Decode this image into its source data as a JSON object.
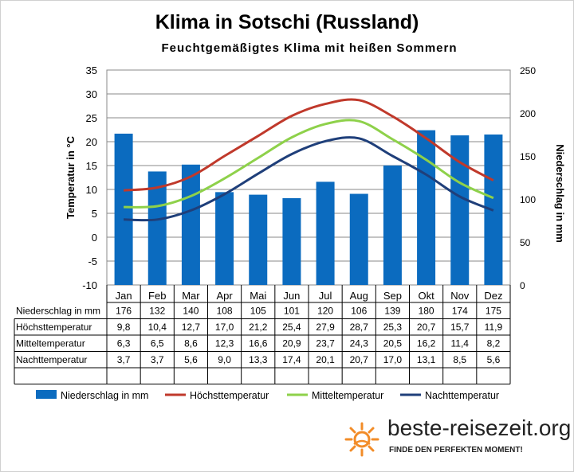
{
  "title": "Klima in Sotschi (Russland)",
  "subtitle": "Feuchtgemäßigtes Klima mit heißen Sommern",
  "colors": {
    "precip": "#0b6bbf",
    "max": "#c0392b",
    "mean": "#8ed14a",
    "min": "#1f3f7a"
  },
  "logo": {
    "name": "beste-reisezeit.org",
    "tagline": "FINDE DEN PERFEKTEN MOMENT!",
    "icon": "sun-icon"
  },
  "chart_data": {
    "type": "bar",
    "categories": [
      "Jan",
      "Feb",
      "Mar",
      "Apr",
      "Mai",
      "Jun",
      "Jul",
      "Aug",
      "Sep",
      "Okt",
      "Nov",
      "Dez"
    ],
    "ylabel_left": "Temperatur in °C",
    "ylabel_right": "Niederschlag in mm",
    "ylim_left": [
      -10,
      35
    ],
    "yticks_left": [
      "35",
      "30",
      "25",
      "20",
      "15",
      "10",
      "5",
      "0",
      "-5",
      "-10"
    ],
    "ylim_right": [
      0,
      250
    ],
    "yticks_right": [
      "250",
      "200",
      "150",
      "100",
      "50",
      "0"
    ],
    "grid": true,
    "legend_position": "bottom",
    "series": [
      {
        "name": "Niederschlag in mm",
        "type": "bar",
        "axis": "right",
        "values": [
          176,
          132,
          140,
          108,
          105,
          101,
          120,
          106,
          139,
          180,
          174,
          175
        ],
        "labels": [
          "176",
          "132",
          "140",
          "108",
          "105",
          "101",
          "120",
          "106",
          "139",
          "180",
          "174",
          "175"
        ]
      },
      {
        "name": "Höchsttemperatur",
        "type": "line",
        "axis": "left",
        "values": [
          9.8,
          10.4,
          12.7,
          17.0,
          21.2,
          25.4,
          27.9,
          28.7,
          25.3,
          20.7,
          15.7,
          11.9
        ],
        "labels": [
          "9,8",
          "10,4",
          "12,7",
          "17,0",
          "21,2",
          "25,4",
          "27,9",
          "28,7",
          "25,3",
          "20,7",
          "15,7",
          "11,9"
        ]
      },
      {
        "name": "Mitteltemperatur",
        "type": "line",
        "axis": "left",
        "values": [
          6.3,
          6.5,
          8.6,
          12.3,
          16.6,
          20.9,
          23.7,
          24.3,
          20.5,
          16.2,
          11.4,
          8.2
        ],
        "labels": [
          "6,3",
          "6,5",
          "8,6",
          "12,3",
          "16,6",
          "20,9",
          "23,7",
          "24,3",
          "20,5",
          "16,2",
          "11,4",
          "8,2"
        ]
      },
      {
        "name": "Nachttemperatur",
        "type": "line",
        "axis": "left",
        "values": [
          3.7,
          3.7,
          5.6,
          9.0,
          13.3,
          17.4,
          20.1,
          20.7,
          17.0,
          13.1,
          8.5,
          5.6
        ],
        "labels": [
          "3,7",
          "3,7",
          "5,6",
          "9,0",
          "13,3",
          "17,4",
          "20,1",
          "20,7",
          "17,0",
          "13,1",
          "8,5",
          "5,6"
        ]
      }
    ]
  }
}
